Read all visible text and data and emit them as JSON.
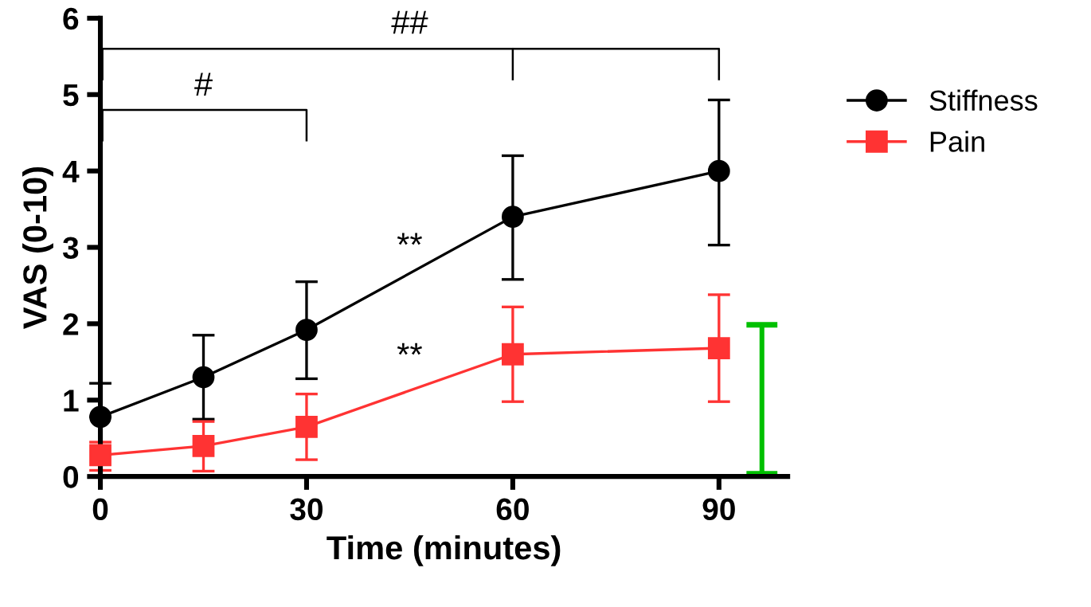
{
  "chart_data": {
    "type": "line",
    "xlabel": "Time (minutes)",
    "ylabel": "VAS (0-10)",
    "x": [
      0,
      15,
      30,
      60,
      90
    ],
    "series": [
      {
        "name": "Stiffness",
        "color": "#000000",
        "marker": "circle",
        "values": [
          0.78,
          1.3,
          1.92,
          3.4,
          4.0
        ],
        "errors": [
          [
            0.78,
            1.22
          ],
          [
            0.75,
            1.85
          ],
          [
            1.28,
            2.55
          ],
          [
            2.58,
            4.2
          ],
          [
            3.03,
            4.93
          ]
        ]
      },
      {
        "name": "Pain",
        "color": "#ff3333",
        "marker": "square",
        "values": [
          0.28,
          0.4,
          0.65,
          1.6,
          1.68
        ],
        "errors": [
          [
            0.08,
            0.45
          ],
          [
            0.07,
            0.72
          ],
          [
            0.22,
            1.08
          ],
          [
            0.98,
            2.22
          ],
          [
            0.98,
            2.38
          ]
        ]
      }
    ],
    "xlim": [
      0,
      100
    ],
    "ylim": [
      0,
      6
    ],
    "xticks": [
      0,
      30,
      60,
      90
    ],
    "yticks": [
      0,
      1,
      2,
      3,
      4,
      5,
      6
    ],
    "annotations": [
      "##",
      "#",
      "**",
      "**"
    ],
    "grid": false,
    "legend": "right"
  }
}
